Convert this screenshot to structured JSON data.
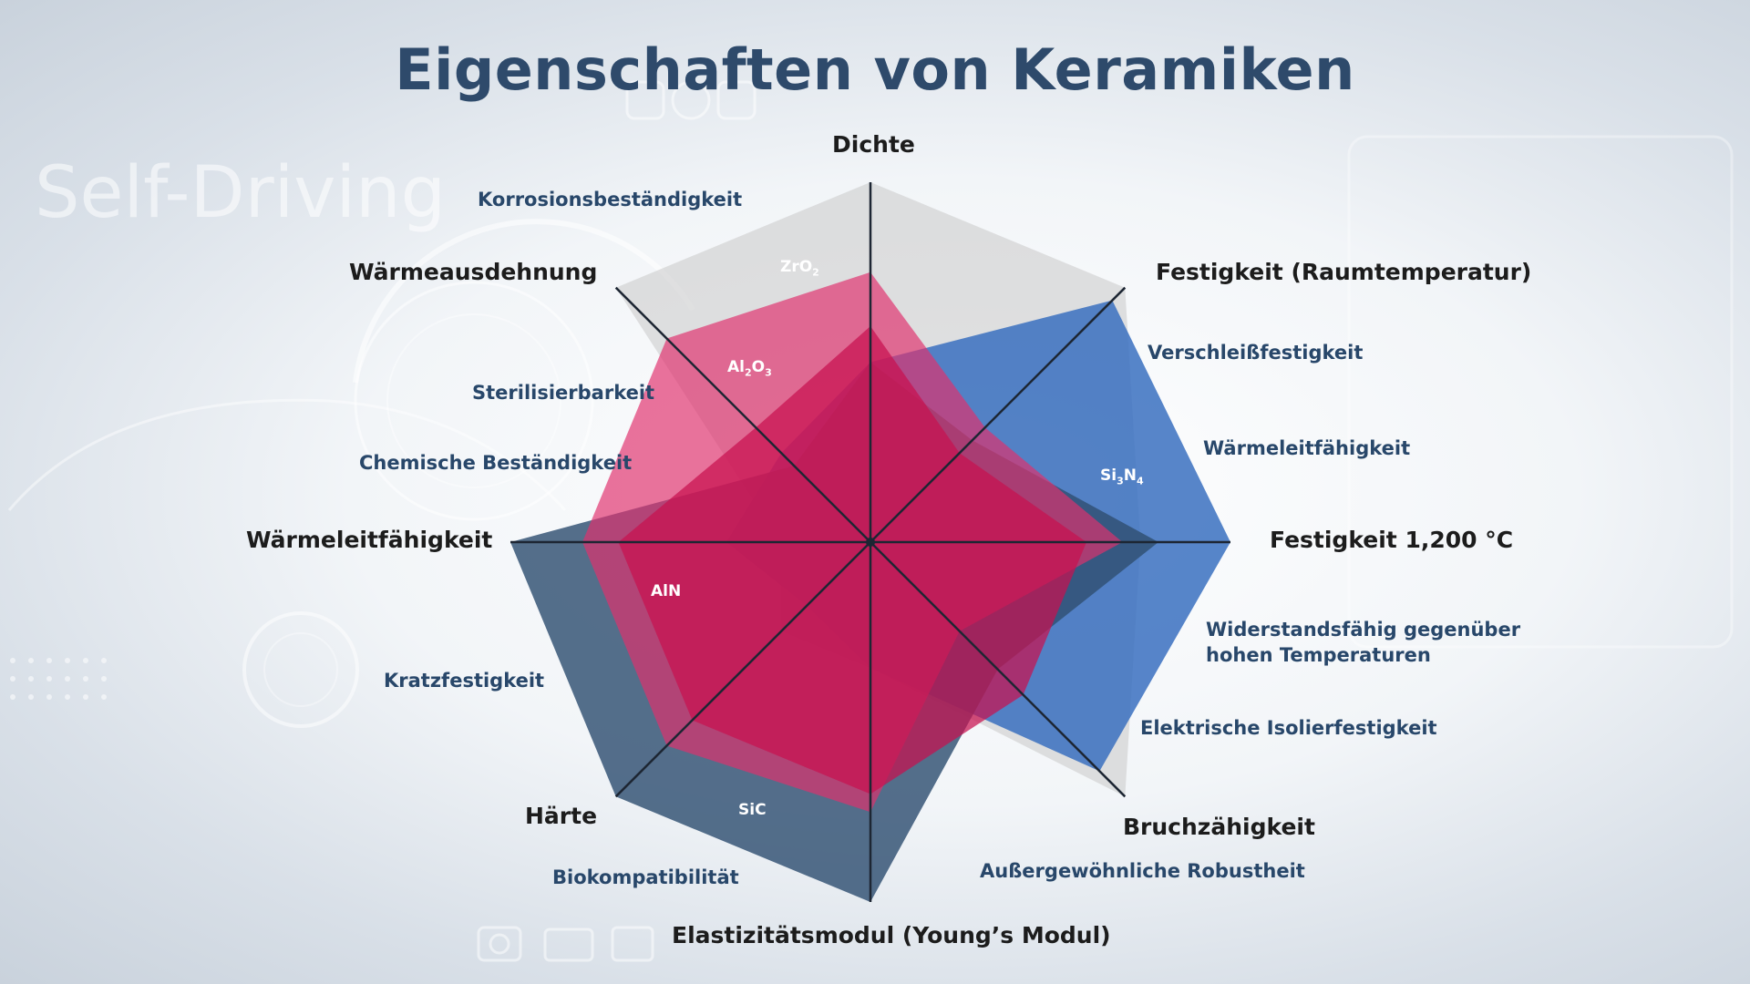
{
  "title": "Eigenschaften von Keramiken",
  "background": {
    "watermark_text": "Self-Driving"
  },
  "colors": {
    "title": "#2e4a6b",
    "axis_label": "#1c1c1c",
    "property_text": "#28476a",
    "ZrO2": "#c8c8c8",
    "Si3N4": "#3a70bf",
    "SiC": "#2f4f72",
    "Al2O3": "#e0316d",
    "AlN": "#c8104f"
  },
  "chart_data": {
    "type": "radar",
    "axes": [
      "Dichte",
      "Festigkeit (Raumtemperatur)",
      "Festigkeit 1,200 °C",
      "Bruchzähigkeit",
      "Elastizitätsmodul (Young’s Modul)",
      "Härte",
      "Wärmeleitfähigkeit",
      "Wärmeausdehnung"
    ],
    "range": [
      0,
      10
    ],
    "grid": false,
    "legend": "labels inside polygons",
    "series": [
      {
        "name": "ZrO2",
        "values": [
          10,
          10,
          7.5,
          10,
          3.5,
          3.5,
          2.5,
          10
        ]
      },
      {
        "name": "Si3N4",
        "values": [
          5,
          9.5,
          10,
          9,
          3.5,
          2.5,
          4,
          3.5
        ]
      },
      {
        "name": "SiC",
        "values": [
          5,
          4,
          8,
          5,
          10,
          10,
          10,
          3
        ]
      },
      {
        "name": "Al2O3",
        "values": [
          7.5,
          4.5,
          7,
          3.5,
          7.5,
          8,
          8,
          8
        ]
      },
      {
        "name": "AlN",
        "values": [
          6,
          3.5,
          6,
          6,
          7,
          7,
          7,
          4.5
        ]
      }
    ]
  },
  "material_labels": [
    {
      "base": "ZrO",
      "sub": "2"
    },
    {
      "base": "Si",
      "sub": "3",
      "base2": "N",
      "sub2": "4"
    },
    {
      "base": "SiC"
    },
    {
      "base": "Al",
      "sub": "2",
      "base2": "O",
      "sub2": "3"
    },
    {
      "base": "AlN"
    }
  ],
  "properties": [
    "Korrosionsbeständigkeit",
    "Verschleißfestigkeit",
    "Wärmeleitfähigkeit",
    "Sterilisierbarkeit",
    "Chemische Beständigkeit",
    "Widerstandsfähig gegenüber",
    "hohen Temperaturen",
    "Kratzfestigkeit",
    "Elektrische Isolierfestigkeit",
    "Biokompatibilität",
    "Außergewöhnliche Robustheit"
  ]
}
